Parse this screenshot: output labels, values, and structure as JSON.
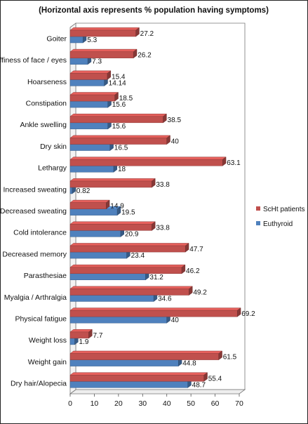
{
  "chart_data": {
    "type": "bar",
    "orientation": "horizontal",
    "title": "(Horizontal axis represents % population having symptoms)",
    "xlim": [
      0,
      70
    ],
    "x_ticks": [
      "0",
      "10",
      "20",
      "30",
      "40",
      "50",
      "60",
      "70"
    ],
    "grid": false,
    "legend_position": "right",
    "categories": [
      "Goiter",
      "Puffiness of face / eyes",
      "Hoarseness",
      "Constipation",
      "Ankle swelling",
      "Dry skin",
      "Lethargy",
      "Increased sweating",
      "Decreased sweating",
      "Cold intolerance",
      "Decreased memory",
      "Parasthesiae",
      "Myalgia / Arthralgia",
      "Physical fatigue",
      "Weight loss",
      "Weight gain",
      "Dry hair/Alopecia"
    ],
    "series": [
      {
        "name": "ScHt patients",
        "color": "#c0504d",
        "values": [
          27.2,
          26.2,
          15.4,
          18.5,
          38.5,
          40,
          63.1,
          33.8,
          14.9,
          33.8,
          47.7,
          46.2,
          49.2,
          69.2,
          7.7,
          61.5,
          55.4
        ],
        "labels": [
          "27.2",
          "26.2",
          "15.4",
          "18.5",
          "38.5",
          "40",
          "63.1",
          "33.8",
          "14.9",
          "33.8",
          "47.7",
          "46.2",
          "49.2",
          "69.2",
          "7.7",
          "61.5",
          "55.4"
        ]
      },
      {
        "name": "Euthyroid",
        "color": "#4f81bd",
        "values": [
          5.3,
          7.3,
          14.14,
          15.6,
          15.6,
          16.5,
          18,
          0.82,
          19.5,
          20.9,
          23.4,
          31.2,
          34.6,
          40,
          1.9,
          44.8,
          48.7
        ],
        "labels": [
          "5.3",
          "7.3",
          "14.14",
          "15.6",
          "15.6",
          "16.5",
          "18",
          "0.82",
          "19.5",
          "20.9",
          "23.4",
          "31.2",
          "34.6",
          "40",
          "1.9",
          "44.8",
          "48.7"
        ]
      }
    ]
  }
}
